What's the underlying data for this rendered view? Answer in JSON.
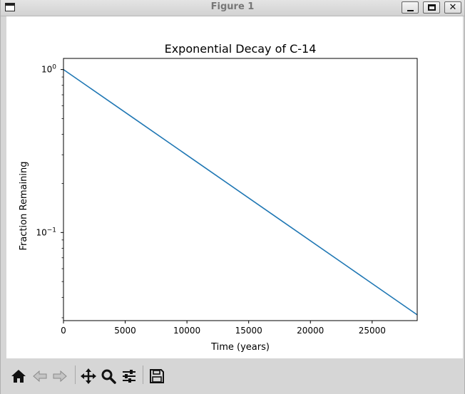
{
  "window": {
    "title": "Figure 1"
  },
  "titlebar_buttons": {
    "minimize_icon": "minimize-icon",
    "maximize_icon": "maximize-icon",
    "close_icon": "close-icon",
    "close_glyph": "✕"
  },
  "toolbar": {
    "icons": [
      "home-icon",
      "back-arrow-icon",
      "forward-arrow-icon",
      "pan-icon",
      "zoom-icon",
      "configure-subplots-icon",
      "save-icon"
    ]
  },
  "chart_data": {
    "type": "line",
    "title": "Exponential Decay of C-14",
    "xlabel": "Time (years)",
    "ylabel": "Fraction Remaining",
    "xlim": [
      0,
      28650
    ],
    "ylim": [
      0.0288,
      1.17
    ],
    "yscale": "log",
    "grid": false,
    "x_ticks": [
      0,
      5000,
      10000,
      15000,
      20000,
      25000
    ],
    "x_tick_labels": [
      "0",
      "5000",
      "10000",
      "15000",
      "20000",
      "25000"
    ],
    "y_ticks": [
      1,
      0.1
    ],
    "y_tick_base": [
      "10",
      "10"
    ],
    "y_tick_exp": [
      "0",
      "−1"
    ],
    "color": "#1f77b4",
    "series": [
      {
        "x": [
          0,
          5730,
          11460,
          17190,
          22920,
          28650
        ],
        "y": [
          1.0,
          0.5,
          0.25,
          0.125,
          0.0625,
          0.03125
        ]
      }
    ]
  }
}
